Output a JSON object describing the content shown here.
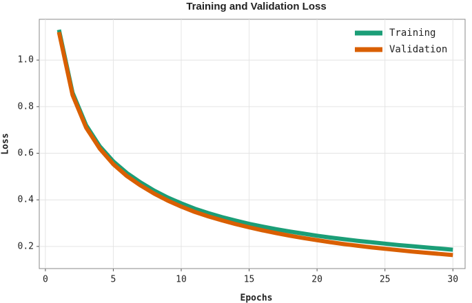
{
  "chart_data": {
    "type": "line",
    "title": "Training and Validation Loss",
    "x_label": "Epochs",
    "y_label": "Loss",
    "x": [
      1,
      2,
      3,
      4,
      5,
      6,
      7,
      8,
      9,
      10,
      11,
      12,
      13,
      14,
      15,
      16,
      17,
      18,
      19,
      20,
      21,
      22,
      23,
      24,
      25,
      26,
      27,
      28,
      29,
      30
    ],
    "series": [
      {
        "name": "Training",
        "color": "#1b9e77",
        "values": [
          1.13,
          0.86,
          0.72,
          0.63,
          0.565,
          0.515,
          0.475,
          0.44,
          0.41,
          0.385,
          0.362,
          0.343,
          0.326,
          0.311,
          0.297,
          0.285,
          0.274,
          0.264,
          0.255,
          0.246,
          0.238,
          0.231,
          0.224,
          0.218,
          0.212,
          0.206,
          0.201,
          0.196,
          0.191,
          0.186
        ]
      },
      {
        "name": "Validation",
        "color": "#d95f02",
        "values": [
          1.12,
          0.85,
          0.71,
          0.62,
          0.553,
          0.502,
          0.462,
          0.427,
          0.397,
          0.371,
          0.348,
          0.329,
          0.312,
          0.296,
          0.282,
          0.269,
          0.257,
          0.246,
          0.236,
          0.227,
          0.218,
          0.21,
          0.203,
          0.196,
          0.19,
          0.184,
          0.178,
          0.173,
          0.168,
          0.163
        ]
      }
    ],
    "xlim": [
      -0.45,
      30.9
    ],
    "ylim": [
      0.105,
      1.175
    ],
    "xticks": [
      0,
      5,
      10,
      15,
      20,
      25,
      30
    ],
    "yticks": [
      0.2,
      0.4,
      0.6,
      0.8,
      {
        "value": 1.0,
        "label": "1.0"
      }
    ],
    "grid": true,
    "legend": "upper right"
  }
}
